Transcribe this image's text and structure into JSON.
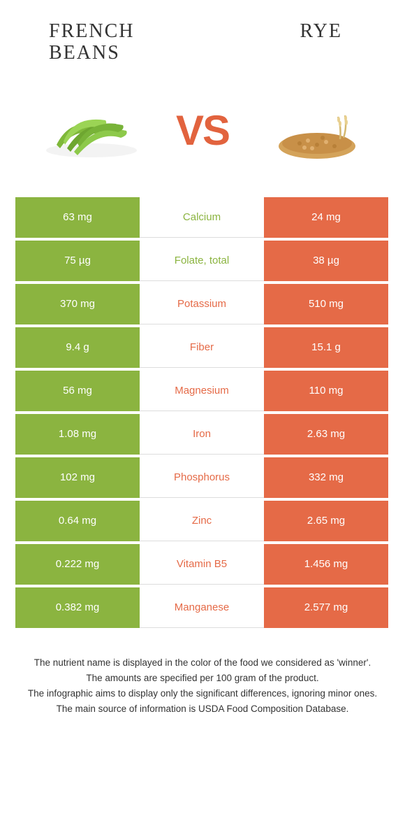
{
  "header": {
    "left_title": "French\nbeans",
    "right_title": "Rye",
    "vs_label": "VS"
  },
  "colors": {
    "left": "#8bb440",
    "right": "#e56a47",
    "background": "#ffffff",
    "text": "#333333"
  },
  "table": {
    "rows": [
      {
        "left": "63 mg",
        "label": "Calcium",
        "right": "24 mg",
        "winner": "left"
      },
      {
        "left": "75 µg",
        "label": "Folate, total",
        "right": "38 µg",
        "winner": "left"
      },
      {
        "left": "370 mg",
        "label": "Potassium",
        "right": "510 mg",
        "winner": "right"
      },
      {
        "left": "9.4 g",
        "label": "Fiber",
        "right": "15.1 g",
        "winner": "right"
      },
      {
        "left": "56 mg",
        "label": "Magnesium",
        "right": "110 mg",
        "winner": "right"
      },
      {
        "left": "1.08 mg",
        "label": "Iron",
        "right": "2.63 mg",
        "winner": "right"
      },
      {
        "left": "102 mg",
        "label": "Phosphorus",
        "right": "332 mg",
        "winner": "right"
      },
      {
        "left": "0.64 mg",
        "label": "Zinc",
        "right": "2.65 mg",
        "winner": "right"
      },
      {
        "left": "0.222 mg",
        "label": "Vitamin B5",
        "right": "1.456 mg",
        "winner": "right"
      },
      {
        "left": "0.382 mg",
        "label": "Manganese",
        "right": "2.577 mg",
        "winner": "right"
      }
    ]
  },
  "footer": {
    "line1": "The nutrient name is displayed in the color of the food we considered as 'winner'.",
    "line2": "The amounts are specified per 100 gram of the product.",
    "line3": "The infographic aims to display only the significant differences, ignoring minor ones.",
    "line4": "The main source of information is USDA Food Composition Database."
  }
}
